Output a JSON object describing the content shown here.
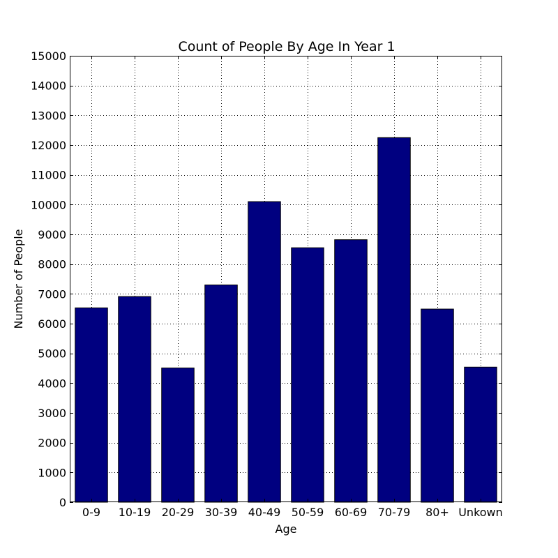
{
  "chart_data": {
    "type": "bar",
    "title": "Count of People By Age In Year 1",
    "xlabel": "Age",
    "ylabel": "Number of People",
    "categories": [
      "0-9",
      "10-19",
      "20-29",
      "30-39",
      "40-49",
      "50-59",
      "60-69",
      "70-79",
      "80+",
      "Unkown"
    ],
    "values": [
      6530,
      6910,
      4510,
      7300,
      10100,
      8550,
      8820,
      12250,
      6490,
      4540
    ],
    "ylim": [
      0,
      15000
    ],
    "yticks": [
      0,
      1000,
      2000,
      3000,
      4000,
      5000,
      6000,
      7000,
      8000,
      9000,
      10000,
      11000,
      12000,
      13000,
      14000,
      15000
    ],
    "grid": true,
    "bar_color": "#000080"
  }
}
